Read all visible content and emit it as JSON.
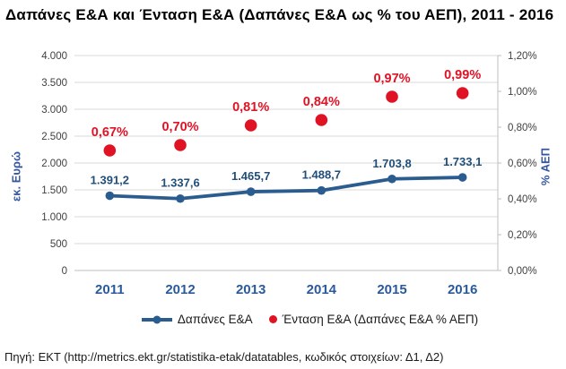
{
  "title": "Δαπάνες Ε&Α και Ένταση Ε&Α (Δαπάνες Ε&Α ως % του ΑΕΠ), 2011 - 2016",
  "chart_data": {
    "type": "combo",
    "categories": [
      "2011",
      "2012",
      "2013",
      "2014",
      "2015",
      "2016"
    ],
    "series": [
      {
        "name": "Δαπάνες Ε&Α",
        "type": "line",
        "axis": "left",
        "values": [
          1391.2,
          1337.6,
          1465.7,
          1488.7,
          1703.8,
          1733.1
        ],
        "labels": [
          "1.391,2",
          "1.337,6",
          "1.465,7",
          "1.488,7",
          "1.703,8",
          "1.733,1"
        ],
        "color": "#2a5c8f",
        "label_color": "#1f4e79"
      },
      {
        "name": "Ένταση Ε&Α (Δαπάνες Ε&Α % ΑΕΠ)",
        "type": "scatter",
        "axis": "right",
        "values": [
          0.67,
          0.7,
          0.81,
          0.84,
          0.97,
          0.99
        ],
        "labels": [
          "0,67%",
          "0,70%",
          "0,81%",
          "0,84%",
          "0,97%",
          "0,99%"
        ],
        "color": "#e01325",
        "label_color": "#e01325"
      }
    ],
    "left_axis": {
      "label": "εκ. Ευρώ",
      "min": 0,
      "max": 4000,
      "step": 500,
      "ticks": [
        "0",
        "500",
        "1.000",
        "1.500",
        "2.000",
        "2.500",
        "3.000",
        "3.500",
        "4.000"
      ]
    },
    "right_axis": {
      "label": "% ΑΕΠ",
      "min": 0,
      "max": 1.2,
      "step": 0.2,
      "ticks": [
        "0,00%",
        "0,20%",
        "0,40%",
        "0,60%",
        "0,80%",
        "1,00%",
        "1,20%"
      ]
    },
    "grid": true,
    "legend_position": "bottom"
  },
  "legend": {
    "items": [
      {
        "label": "Δαπάνες Ε&Α",
        "marker": "line-dot",
        "color": "#2a5c8f"
      },
      {
        "label": "Ένταση Ε&Α (Δαπάνες Ε&Α % ΑΕΠ)",
        "marker": "dot",
        "color": "#e01325"
      }
    ]
  },
  "footer": "Πηγή: ΕΚΤ (http://metrics.ekt.gr/statistika-etak/datatables, κωδικός στοιχείων: Δ1, Δ2)",
  "colors": {
    "grid": "#d9d9d9",
    "axis_line": "#bfbfbf",
    "tick_text": "#404040",
    "year_text": "#2a5a9c",
    "axis_title_text": "#3355a4",
    "title_text": "#000000",
    "footer_text": "#1a1a1a"
  }
}
